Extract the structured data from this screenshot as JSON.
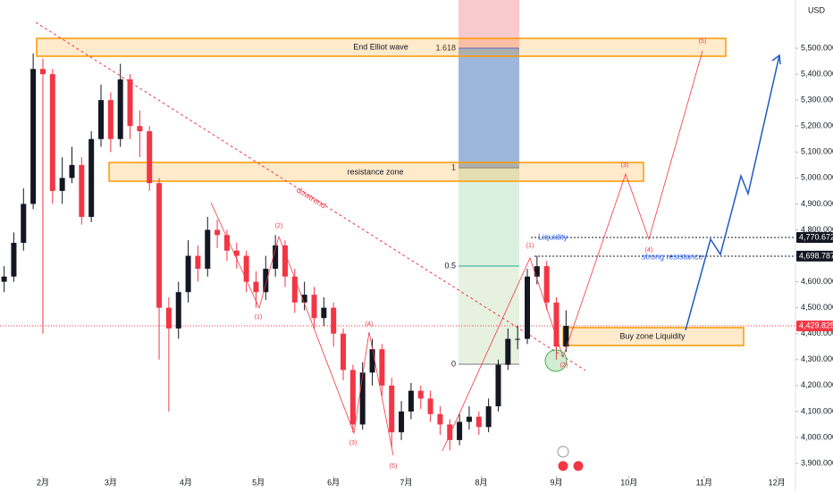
{
  "chart_data": {
    "type": "candlestick",
    "currency": "USD",
    "up_color": "#131722",
    "down_color": "#f23645",
    "xlim": [
      14.3,
      342.7
    ],
    "ylim": [
      3793.6,
      5685.8
    ],
    "xticks": [
      {
        "value": 32,
        "label": "2月"
      },
      {
        "value": 60,
        "label": "3月"
      },
      {
        "value": 91,
        "label": "4月"
      },
      {
        "value": 121,
        "label": "5月"
      },
      {
        "value": 152,
        "label": "6月"
      },
      {
        "value": 182,
        "label": "7月"
      },
      {
        "value": 213,
        "label": "8月"
      },
      {
        "value": 244,
        "label": "9月"
      },
      {
        "value": 274,
        "label": "10月"
      },
      {
        "value": 305,
        "label": "11月"
      },
      {
        "value": 335,
        "label": "12月"
      }
    ],
    "yticks": [
      {
        "value": 5500,
        "label": "5,500.000"
      },
      {
        "value": 5400,
        "label": "5,400.000"
      },
      {
        "value": 5300,
        "label": "5,300.000"
      },
      {
        "value": 5200,
        "label": "5,200.000"
      },
      {
        "value": 5100,
        "label": "5,100.000"
      },
      {
        "value": 5000,
        "label": "5,000.000"
      },
      {
        "value": 4900,
        "label": "4,900.000"
      },
      {
        "value": 4800,
        "label": "4,800.000"
      },
      {
        "value": 4700,
        "label": "4,700.000"
      },
      {
        "value": 4600,
        "label": "4,600.000"
      },
      {
        "value": 4500,
        "label": "4,500.000"
      },
      {
        "value": 4400,
        "label": "4,400.000"
      },
      {
        "value": 4300,
        "label": "4,300.000"
      },
      {
        "value": 4200,
        "label": "4,200.000"
      },
      {
        "value": 4100,
        "label": "4,100.000"
      },
      {
        "value": 4000,
        "label": "4,000.000"
      },
      {
        "value": 3900,
        "label": "3,900.000"
      }
    ],
    "x": [
      16,
      20,
      24,
      28,
      32,
      36,
      40,
      44,
      48,
      52,
      56,
      60,
      64,
      68,
      72,
      76,
      80,
      84,
      88,
      92,
      96,
      100,
      104,
      108,
      112,
      116,
      120,
      124,
      128,
      132,
      136,
      140,
      144,
      148,
      152,
      156,
      160,
      164,
      168,
      172,
      176,
      180,
      184,
      188,
      192,
      196,
      200,
      204,
      208,
      212,
      216,
      220,
      224,
      228,
      232,
      236,
      240,
      244,
      248
    ],
    "open": [
      4600,
      4620,
      4750,
      4900,
      5420,
      5400,
      4950,
      5000,
      5050,
      4850,
      5150,
      5300,
      5150,
      5380,
      5200,
      5180,
      4980,
      4500,
      4420,
      4560,
      4700,
      4650,
      4800,
      4780,
      4720,
      4700,
      4600,
      4560,
      4650,
      4740,
      4620,
      4520,
      4550,
      4460,
      4500,
      4400,
      4260,
      4050,
      4250,
      4340,
      4200,
      4020,
      4100,
      4180,
      4150,
      4090,
      4050,
      3990,
      4060,
      4080,
      4040,
      4120,
      4280,
      4380,
      4380,
      4620,
      4660,
      4520,
      4350
    ],
    "high": [
      4660,
      4790,
      4960,
      5480,
      5460,
      5420,
      5080,
      5120,
      5080,
      5180,
      5360,
      5330,
      5440,
      5400,
      5260,
      5200,
      5000,
      4540,
      4600,
      4760,
      4740,
      4850,
      4840,
      4800,
      4750,
      4720,
      4640,
      4700,
      4780,
      4760,
      4650,
      4600,
      4580,
      4540,
      4520,
      4420,
      4280,
      4290,
      4380,
      4360,
      4230,
      4140,
      4210,
      4200,
      4180,
      4120,
      4070,
      4090,
      4120,
      4100,
      4150,
      4300,
      4420,
      4430,
      4650,
      4700,
      4680,
      4540,
      4490
    ],
    "low": [
      4560,
      4600,
      4720,
      4880,
      4400,
      4900,
      4900,
      4980,
      4820,
      4830,
      5120,
      5100,
      5120,
      5150,
      5080,
      4950,
      4300,
      4100,
      4380,
      4520,
      4600,
      4620,
      4730,
      4680,
      4650,
      4560,
      4500,
      4530,
      4620,
      4580,
      4480,
      4490,
      4420,
      4430,
      4350,
      4220,
      4020,
      4030,
      4200,
      4160,
      3960,
      3990,
      4070,
      4110,
      4060,
      4010,
      3950,
      3970,
      4030,
      4010,
      4020,
      4100,
      4260,
      4340,
      4360,
      4590,
      4490,
      4300,
      4330
    ],
    "close": [
      4620,
      4750,
      4900,
      5420,
      5400,
      4950,
      5000,
      5050,
      4850,
      5150,
      5300,
      5150,
      5380,
      5200,
      5180,
      4980,
      4500,
      4420,
      4560,
      4700,
      4650,
      4800,
      4780,
      4720,
      4700,
      4600,
      4560,
      4650,
      4740,
      4620,
      4520,
      4550,
      4460,
      4500,
      4400,
      4260,
      4050,
      4250,
      4340,
      4200,
      4020,
      4100,
      4180,
      4150,
      4090,
      4050,
      3990,
      4060,
      4080,
      4040,
      4120,
      4280,
      4380,
      4380,
      4620,
      4660,
      4520,
      4350,
      4430
    ],
    "price_markers": [
      {
        "value": 4770.672,
        "label": "4,770.672",
        "color": "#131722"
      },
      {
        "value": 4698.787,
        "label": "4,698.787",
        "color": "#131722"
      },
      {
        "value": 4429.825,
        "label": "4,429.825",
        "color": "#f23645"
      }
    ],
    "annotations": {
      "zones": [
        "End Elliot wave",
        "resistance zone",
        "Buy zone Liquidity"
      ],
      "liquidity": "Liquidity",
      "strong_resistance": "strong resistance",
      "trendline": "dowtrend",
      "fib_levels": [
        1.618,
        1,
        0.5,
        0
      ],
      "wave_labels": [
        "(1)",
        "(2)",
        "(3)",
        "(4)",
        "(5)",
        "(1)",
        "(2)",
        "(3)",
        "(4)",
        "(5)"
      ]
    }
  }
}
